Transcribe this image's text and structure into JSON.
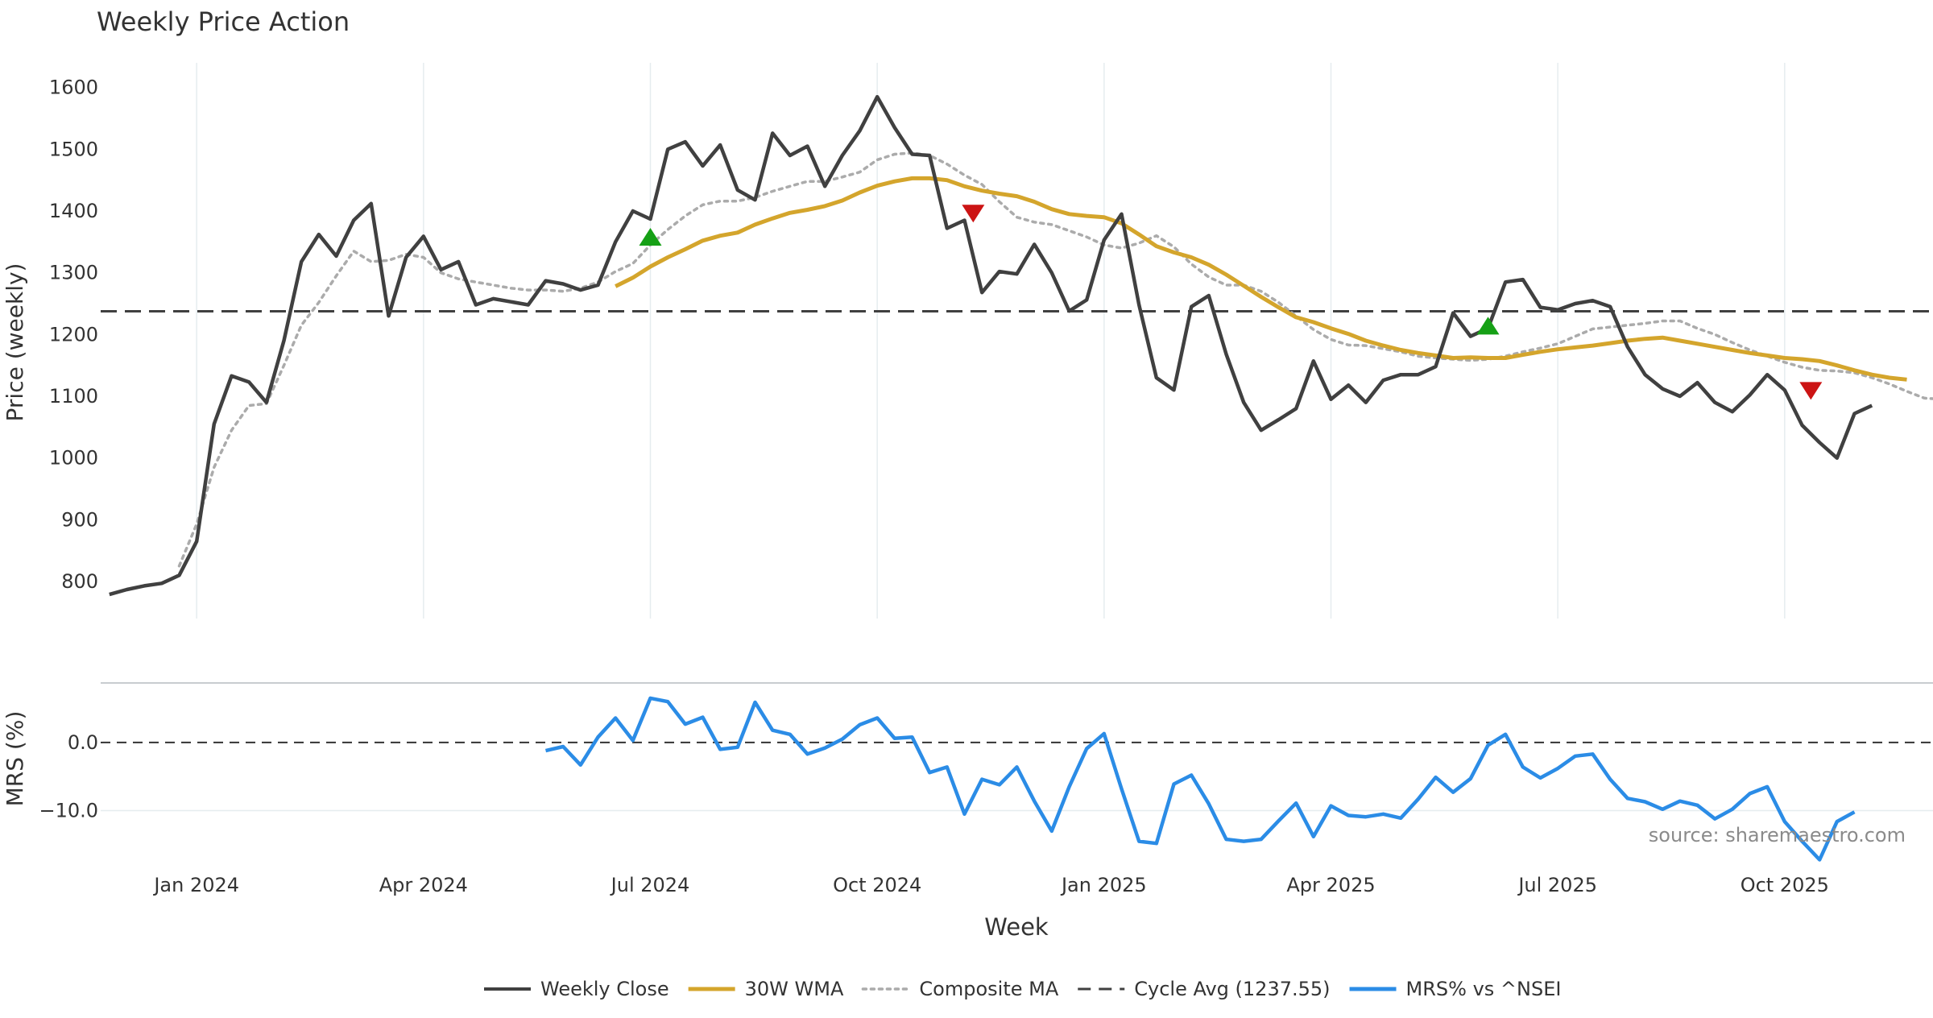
{
  "colors": {
    "close": "#404040",
    "wma": "#d4a52c",
    "composite": "#ababab",
    "cycle": "#404040",
    "mrs": "#2b8ce6",
    "buy": "#16a016",
    "sell": "#cc1414",
    "grid": "#e6ecef",
    "separator": "#c8ccd0",
    "watermark": "#8a8a8a"
  },
  "chart_data": [
    {
      "type": "line",
      "title": "Weekly Price Action",
      "ylabel": "Price (weekly)",
      "xlabel": "Week",
      "ylim": [
        740,
        1640
      ],
      "yticks": [
        800,
        900,
        1000,
        1100,
        1200,
        1300,
        1400,
        1500,
        1600
      ],
      "xticks": [
        "Jan 2024",
        "Apr 2024",
        "Jul 2024",
        "Oct 2024",
        "Jan 2025",
        "Apr 2025",
        "Jul 2025",
        "Oct 2025"
      ],
      "xtick_weeks": [
        5,
        18,
        31,
        44,
        57,
        70,
        83,
        96
      ],
      "week_range": [
        -0.5,
        104.5
      ],
      "cycle_avg": 1237.55,
      "grid": "x",
      "series": [
        {
          "name": "Weekly Close",
          "start_week": 0,
          "values": [
            779,
            787,
            793,
            797,
            810,
            865,
            1055,
            1133,
            1123,
            1090,
            1190,
            1318,
            1362,
            1327,
            1385,
            1412,
            1230,
            1325,
            1359,
            1305,
            1318,
            1248,
            1258,
            1253,
            1248,
            1287,
            1282,
            1272,
            1280,
            1350,
            1400,
            1387,
            1500,
            1512,
            1473,
            1507,
            1434,
            1418,
            1526,
            1490,
            1505,
            1440,
            1490,
            1530,
            1585,
            1535,
            1492,
            1490,
            1372,
            1385,
            1268,
            1302,
            1298,
            1346,
            1300,
            1238,
            1256,
            1353,
            1395,
            1248,
            1130,
            1110,
            1245,
            1263,
            1168,
            1090,
            1045,
            1062,
            1080,
            1157,
            1095,
            1118,
            1090,
            1126,
            1135,
            1135,
            1148,
            1235,
            1197,
            1210,
            1285,
            1289,
            1244,
            1240,
            1250,
            1255,
            1245,
            1180,
            1135,
            1112,
            1100,
            1122,
            1090,
            1075,
            1102,
            1135,
            1110,
            1053,
            1025,
            1000,
            1072,
            1085
          ]
        },
        {
          "name": "30W WMA",
          "start_week": 29,
          "values": [
            1278,
            1292,
            1310,
            1325,
            1338,
            1352,
            1360,
            1365,
            1378,
            1388,
            1397,
            1402,
            1408,
            1417,
            1430,
            1441,
            1448,
            1453,
            1453,
            1450,
            1440,
            1433,
            1428,
            1424,
            1415,
            1403,
            1395,
            1392,
            1390,
            1380,
            1362,
            1343,
            1333,
            1325,
            1313,
            1297,
            1279,
            1261,
            1244,
            1228,
            1220,
            1210,
            1201,
            1190,
            1182,
            1175,
            1170,
            1166,
            1162,
            1163,
            1162,
            1162,
            1167,
            1172,
            1176,
            1179,
            1182,
            1186,
            1190,
            1193,
            1195,
            1190,
            1185,
            1180,
            1175,
            1170,
            1166,
            1162,
            1160,
            1157,
            1150,
            1142,
            1135,
            1130,
            1127
          ]
        },
        {
          "name": "Composite MA",
          "start_week": 4,
          "values": [
            825,
            893,
            985,
            1045,
            1085,
            1088,
            1150,
            1215,
            1252,
            1295,
            1335,
            1318,
            1320,
            1330,
            1325,
            1300,
            1290,
            1285,
            1280,
            1275,
            1272,
            1272,
            1270,
            1275,
            1285,
            1302,
            1315,
            1345,
            1370,
            1392,
            1410,
            1416,
            1416,
            1422,
            1432,
            1440,
            1448,
            1448,
            1455,
            1463,
            1483,
            1492,
            1494,
            1490,
            1476,
            1458,
            1443,
            1415,
            1390,
            1382,
            1378,
            1368,
            1358,
            1345,
            1340,
            1348,
            1360,
            1342,
            1314,
            1293,
            1280,
            1280,
            1270,
            1252,
            1230,
            1208,
            1192,
            1183,
            1182,
            1177,
            1172,
            1165,
            1162,
            1160,
            1158,
            1160,
            1165,
            1172,
            1178,
            1185,
            1197,
            1209,
            1212,
            1215,
            1218,
            1222,
            1222,
            1210,
            1200,
            1187,
            1175,
            1165,
            1155,
            1147,
            1142,
            1141,
            1138,
            1130,
            1120,
            1108,
            1097,
            1095
          ]
        },
        {
          "name": "Cycle Avg (1237.55)",
          "value": 1237.55
        }
      ],
      "markers": [
        {
          "type": "buy",
          "week": 31,
          "value": 1357
        },
        {
          "type": "sell",
          "week": 49.5,
          "value": 1397
        },
        {
          "type": "buy",
          "week": 79,
          "value": 1213
        },
        {
          "type": "sell",
          "week": 97.5,
          "value": 1110
        }
      ]
    },
    {
      "type": "line",
      "ylabel": "MRS (%)",
      "ylim": [
        -17.5,
        8.5
      ],
      "yticks": [
        0.0,
        -10.0
      ],
      "ytick_labels": [
        "0.0",
        "−10.0"
      ],
      "zero_line": 0,
      "series": [
        {
          "name": "MRS% vs ^NSEI",
          "start_week": 25,
          "values": [
            -1.2,
            -0.6,
            -3.3,
            0.8,
            3.6,
            0.3,
            6.5,
            6.0,
            2.7,
            3.7,
            -1.0,
            -0.7,
            5.9,
            1.8,
            1.2,
            -1.7,
            -0.8,
            0.5,
            2.6,
            3.6,
            0.6,
            0.8,
            -4.4,
            -3.6,
            -10.5,
            -5.4,
            -6.2,
            -3.6,
            -8.6,
            -13.0,
            -6.5,
            -0.9,
            1.3,
            -6.8,
            -14.5,
            -14.8,
            -6.1,
            -4.8,
            -9.0,
            -14.2,
            -14.5,
            -14.2,
            -11.5,
            -8.9,
            -13.8,
            -9.3,
            -10.7,
            -10.9,
            -10.5,
            -11.1,
            -8.3,
            -5.1,
            -7.3,
            -5.3,
            -0.4,
            1.2,
            -3.6,
            -5.2,
            -3.8,
            -2.0,
            -1.7,
            -5.4,
            -8.2,
            -8.7,
            -9.8,
            -8.6,
            -9.2,
            -11.2,
            -9.8,
            -7.5,
            -6.5,
            -11.6,
            -14.5,
            -17.2,
            -11.6,
            -10.2
          ]
        }
      ]
    }
  ],
  "legend": {
    "items": [
      {
        "label": "Weekly Close",
        "style": "solid",
        "color_key": "close"
      },
      {
        "label": "30W WMA",
        "style": "solid-thick",
        "color_key": "wma"
      },
      {
        "label": "Composite MA",
        "style": "dotted",
        "color_key": "composite"
      },
      {
        "label": "Cycle Avg (1237.55)",
        "style": "dashed",
        "color_key": "cycle"
      },
      {
        "label": "MRS% vs ^NSEI",
        "style": "solid-thick",
        "color_key": "mrs"
      }
    ]
  },
  "watermark": "source: sharemaestro.com"
}
